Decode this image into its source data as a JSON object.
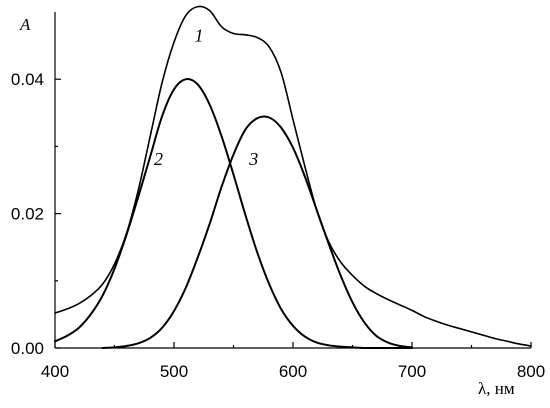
{
  "chart_data": {
    "type": "line",
    "title": "",
    "xlabel": "λ, нм",
    "ylabel": "A",
    "xlim": [
      400,
      800
    ],
    "ylim": [
      0,
      0.05
    ],
    "x_ticks": [
      400,
      500,
      600,
      700,
      800
    ],
    "x_tick_labels": [
      "400",
      "500",
      "600",
      "700",
      "800"
    ],
    "y_ticks": [
      0,
      0.02,
      0.04
    ],
    "y_tick_labels": [
      "0.00",
      "0.02",
      "0.04"
    ],
    "grid": false,
    "legend": "none",
    "series": [
      {
        "name": "1",
        "x": [
          400,
          410,
          420,
          430,
          440,
          450,
          460,
          470,
          480,
          490,
          500,
          510,
          520,
          530,
          540,
          550,
          560,
          570,
          580,
          590,
          600,
          610,
          620,
          630,
          640,
          650,
          660,
          670,
          680,
          690,
          700,
          710,
          720,
          730,
          740,
          750,
          760,
          770,
          780,
          790,
          800
        ],
        "values": [
          0.0052,
          0.0058,
          0.0066,
          0.0078,
          0.0095,
          0.0125,
          0.017,
          0.0235,
          0.0315,
          0.0395,
          0.0455,
          0.0495,
          0.0508,
          0.0502,
          0.0478,
          0.0468,
          0.0466,
          0.0462,
          0.0448,
          0.041,
          0.034,
          0.027,
          0.0205,
          0.0158,
          0.0128,
          0.0108,
          0.0092,
          0.0081,
          0.0072,
          0.0064,
          0.0056,
          0.0047,
          0.004,
          0.0034,
          0.0029,
          0.0024,
          0.0019,
          0.0014,
          0.001,
          0.0006,
          0.0003
        ]
      },
      {
        "name": "2",
        "x": [
          400,
          410,
          420,
          430,
          440,
          450,
          460,
          470,
          480,
          490,
          500,
          510,
          520,
          530,
          540,
          550,
          560,
          570,
          580,
          590,
          600,
          610,
          620,
          630,
          640,
          650,
          660,
          670,
          680,
          690,
          700
        ],
        "values": [
          0.001,
          0.0018,
          0.003,
          0.005,
          0.0078,
          0.0118,
          0.0168,
          0.0225,
          0.0285,
          0.0345,
          0.0385,
          0.04,
          0.0392,
          0.0362,
          0.0315,
          0.0258,
          0.0198,
          0.0142,
          0.0095,
          0.0058,
          0.0033,
          0.0017,
          0.0008,
          0.0004,
          0.0002,
          0.0001,
          0,
          0,
          0,
          0,
          0
        ]
      },
      {
        "name": "3",
        "x": [
          440,
          450,
          460,
          470,
          480,
          490,
          500,
          510,
          520,
          530,
          540,
          550,
          560,
          570,
          580,
          590,
          600,
          610,
          620,
          630,
          640,
          650,
          660,
          670,
          680,
          690,
          700
        ],
        "values": [
          0,
          0.0001,
          0.0003,
          0.0007,
          0.0015,
          0.003,
          0.0055,
          0.009,
          0.0135,
          0.0185,
          0.024,
          0.0288,
          0.0325,
          0.0342,
          0.0343,
          0.0328,
          0.0298,
          0.0255,
          0.0205,
          0.0155,
          0.0108,
          0.0068,
          0.0038,
          0.0018,
          0.0008,
          0.0003,
          0.0001
        ]
      }
    ],
    "curve_labels": [
      {
        "text": "1",
        "x": 521,
        "y": 0.0456
      },
      {
        "text": "2",
        "x": 487,
        "y": 0.0272
      },
      {
        "text": "3",
        "x": 567,
        "y": 0.0272
      }
    ]
  }
}
